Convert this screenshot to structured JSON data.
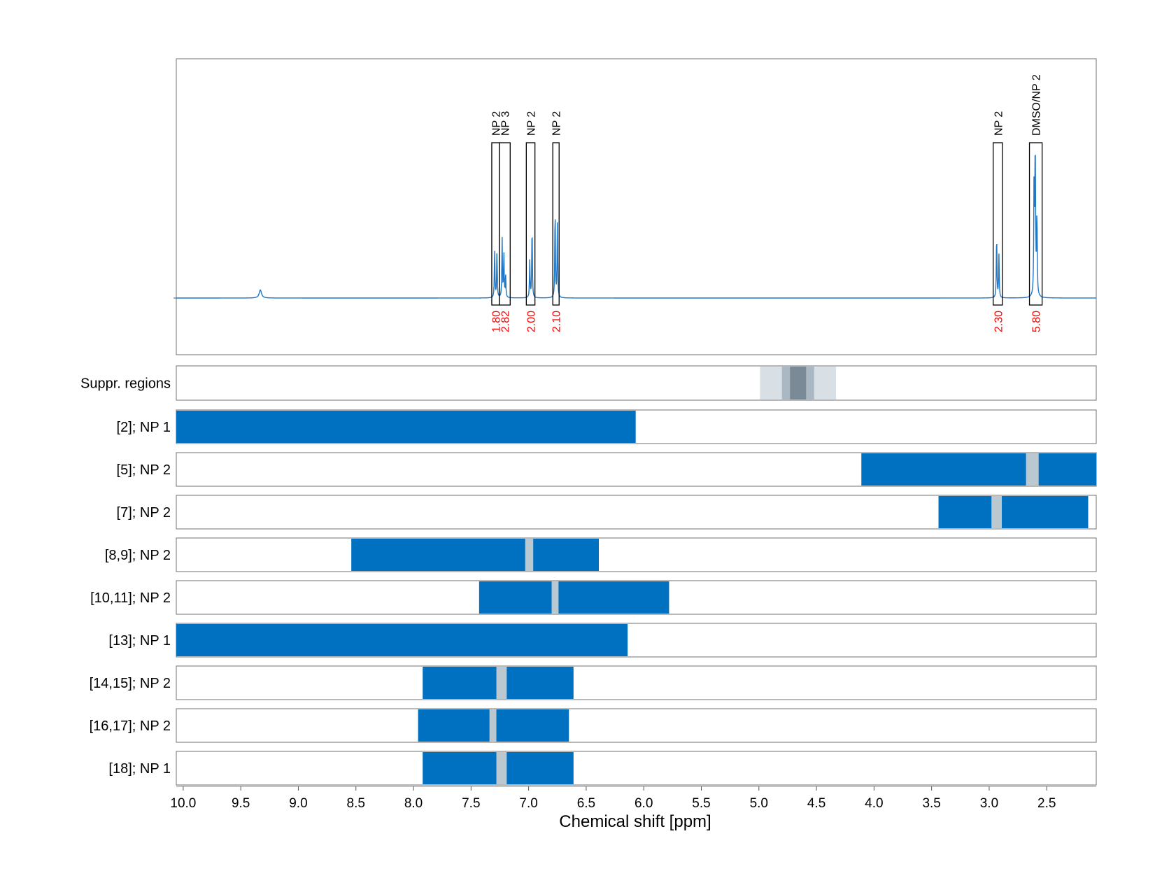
{
  "chart_data": {
    "type": "line",
    "xlabel": "Chemical shift [ppm]",
    "x_axis_reversed": true,
    "xlim": [
      10.06,
      2.07
    ],
    "x_ticks": [
      {
        "value": 10.0,
        "label": "10.0"
      },
      {
        "value": 9.5,
        "label": "9.5"
      },
      {
        "value": 9.0,
        "label": "9.0"
      },
      {
        "value": 8.5,
        "label": "8.5"
      },
      {
        "value": 8.0,
        "label": "8.0"
      },
      {
        "value": 7.5,
        "label": "7.5"
      },
      {
        "value": 7.0,
        "label": "7.0"
      },
      {
        "value": 6.5,
        "label": "6.5"
      },
      {
        "value": 6.0,
        "label": "6.0"
      },
      {
        "value": 5.5,
        "label": "5.5"
      },
      {
        "value": 5.0,
        "label": "5.0"
      },
      {
        "value": 4.5,
        "label": "4.5"
      },
      {
        "value": 4.0,
        "label": "4.0"
      },
      {
        "value": 3.5,
        "label": "3.5"
      },
      {
        "value": 3.0,
        "label": "3.0"
      },
      {
        "value": 2.5,
        "label": "2.5"
      }
    ],
    "grid": "vertical dashed",
    "colors": {
      "spectrum": "#1f77c8",
      "bar": "#0070c0",
      "gap": "#bcc8d0",
      "integral_label": "#ff0000",
      "suppression_light": "#d8e0e6",
      "suppression_mid": "#a9b8c2",
      "suppression_dark": "#7a8a96"
    },
    "spectrum": {
      "baseline": 0,
      "ylim": [
        -0.38,
        1.6
      ],
      "peaks": [
        {
          "center": 9.33,
          "height": 0.055,
          "width": 0.012
        },
        {
          "center": 7.295,
          "height": 0.33,
          "width": 0.003
        },
        {
          "center": 7.275,
          "height": 0.31,
          "width": 0.003
        },
        {
          "center": 7.23,
          "height": 0.4,
          "width": 0.003
        },
        {
          "center": 7.215,
          "height": 0.3,
          "width": 0.003
        },
        {
          "center": 7.2,
          "height": 0.16,
          "width": 0.003
        },
        {
          "center": 6.99,
          "height": 0.25,
          "width": 0.003
        },
        {
          "center": 6.97,
          "height": 0.5,
          "width": 0.003
        },
        {
          "center": 6.77,
          "height": 0.61,
          "width": 0.003
        },
        {
          "center": 6.75,
          "height": 0.5,
          "width": 0.003
        },
        {
          "center": 2.935,
          "height": 0.44,
          "width": 0.003
        },
        {
          "center": 2.915,
          "height": 0.29,
          "width": 0.003
        },
        {
          "center": 2.6,
          "height": 1.0,
          "width": 0.004
        },
        {
          "center": 2.61,
          "height": 0.75,
          "width": 0.003
        },
        {
          "center": 2.585,
          "height": 0.55,
          "width": 0.003
        }
      ],
      "integrals": [
        {
          "label": "NP 2",
          "value": "1.80",
          "x_start": 7.32,
          "x_end": 7.255
        },
        {
          "label": "NP 3",
          "value": "2.82",
          "x_start": 7.255,
          "x_end": 7.16
        },
        {
          "label": "NP 2",
          "value": "2.00",
          "x_start": 7.02,
          "x_end": 6.945
        },
        {
          "label": "NP 2",
          "value": "2.10",
          "x_start": 6.79,
          "x_end": 6.735
        },
        {
          "label": "NP 2",
          "value": "2.30",
          "x_start": 2.965,
          "x_end": 2.885
        },
        {
          "label": "DMSO/NP 2",
          "value": "5.80",
          "x_start": 2.65,
          "x_end": 2.54
        }
      ]
    },
    "suppression": {
      "label": "Suppr. regions",
      "layers": [
        {
          "from": 4.99,
          "to": 4.33,
          "shade": "light"
        },
        {
          "from": 4.8,
          "to": 4.52,
          "shade": "mid"
        },
        {
          "from": 4.73,
          "to": 4.59,
          "shade": "dark"
        }
      ]
    },
    "range_rows": [
      {
        "label": "[2]; NP 1",
        "from": 10.06,
        "to": 6.07,
        "gaps": []
      },
      {
        "label": "[5]; NP 2",
        "from": 4.11,
        "to": 2.07,
        "gaps": [
          [
            2.68,
            2.57
          ]
        ]
      },
      {
        "label": "[7]; NP 2",
        "from": 3.44,
        "to": 2.14,
        "gaps": [
          [
            2.98,
            2.89
          ]
        ]
      },
      {
        "label": "[8,9]; NP 2",
        "from": 8.54,
        "to": 6.39,
        "gaps": [
          [
            7.03,
            6.96
          ]
        ]
      },
      {
        "label": "[10,11]; NP 2",
        "from": 7.43,
        "to": 5.78,
        "gaps": [
          [
            6.8,
            6.74
          ]
        ]
      },
      {
        "label": "[13]; NP 1",
        "from": 10.06,
        "to": 6.14,
        "gaps": []
      },
      {
        "label": "[14,15]; NP 2",
        "from": 7.92,
        "to": 6.61,
        "gaps": [
          [
            7.28,
            7.19
          ]
        ]
      },
      {
        "label": "[16,17]; NP 2",
        "from": 7.96,
        "to": 6.65,
        "gaps": [
          [
            7.34,
            7.28
          ]
        ]
      },
      {
        "label": "[18]; NP 1",
        "from": 7.92,
        "to": 6.61,
        "gaps": [
          [
            7.28,
            7.19
          ]
        ]
      }
    ]
  }
}
